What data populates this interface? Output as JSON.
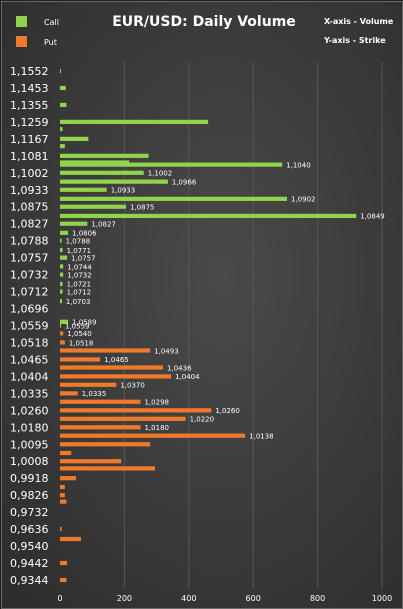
{
  "chart_data": {
    "type": "bar",
    "orientation": "horizontal",
    "title": "EUR/USD: Daily Volume",
    "axis_notes": [
      "X-axis - Volume",
      "Y-axis - Strike"
    ],
    "legend": {
      "placement": "top-left",
      "entries": [
        {
          "name": "Call",
          "color": "#8fd44a"
        },
        {
          "name": "Put",
          "color": "#f07a2a"
        }
      ]
    },
    "xlim": [
      0,
      1000
    ],
    "xticks": [
      "0",
      "200",
      "400",
      "600",
      "800",
      "1000"
    ],
    "grid": true,
    "ytick_labels": [
      "1,1552",
      "1,1453",
      "1,1355",
      "1,1259",
      "1,1167",
      "1,1081",
      "1,1002",
      "1,0933",
      "1,0875",
      "1,0827",
      "1,0788",
      "1,0757",
      "1,0732",
      "1,0712",
      "1,0696",
      "1,0559",
      "1,0518",
      "1,0465",
      "1,0404",
      "1,0335",
      "1,0260",
      "1,0180",
      "1,0095",
      "1,0008",
      "0,9918",
      "0,9826",
      "0,9732",
      "0,9636",
      "0,9540",
      "0,9442",
      "0,9344"
    ],
    "series": [
      {
        "name": "Call",
        "color": "#8fd44a",
        "bars": [
          {
            "strike": 1.1552,
            "value": 3
          },
          {
            "strike": 1.1453,
            "value": 18
          },
          {
            "strike": 1.1355,
            "value": 20
          },
          {
            "strike": 1.1259,
            "value": 460
          },
          {
            "strike": 1.122,
            "value": 8
          },
          {
            "strike": 1.1167,
            "value": 88
          },
          {
            "strike": 1.113,
            "value": 15
          },
          {
            "strike": 1.1081,
            "value": 275
          },
          {
            "strike": 1.105,
            "value": 215
          },
          {
            "strike": 1.104,
            "value": 690,
            "label": "1,1040"
          },
          {
            "strike": 1.1002,
            "value": 260,
            "label": "1,1002"
          },
          {
            "strike": 1.0966,
            "value": 335,
            "label": "1,0966"
          },
          {
            "strike": 1.0933,
            "value": 145,
            "label": "1,0933"
          },
          {
            "strike": 1.0902,
            "value": 705,
            "label": "1,0902"
          },
          {
            "strike": 1.0875,
            "value": 205,
            "label": "1,0875"
          },
          {
            "strike": 1.0849,
            "value": 920,
            "label": "1,0849"
          },
          {
            "strike": 1.0827,
            "value": 85,
            "label": "1,0827"
          },
          {
            "strike": 1.0806,
            "value": 25,
            "label": "1,0806"
          },
          {
            "strike": 1.0788,
            "value": 5,
            "label": "1,0788"
          },
          {
            "strike": 1.0771,
            "value": 8,
            "label": "1,0771"
          },
          {
            "strike": 1.0757,
            "value": 22,
            "label": "1,0757"
          },
          {
            "strike": 1.0744,
            "value": 10,
            "label": "1,0744"
          },
          {
            "strike": 1.0732,
            "value": 10,
            "label": "1,0732"
          },
          {
            "strike": 1.0721,
            "value": 8,
            "label": "1,0721"
          },
          {
            "strike": 1.0712,
            "value": 8,
            "label": "1,0712"
          },
          {
            "strike": 1.0703,
            "value": 6,
            "label": "1,0703"
          },
          {
            "strike": 1.0589,
            "value": 25,
            "label": "1,0589"
          },
          {
            "strike": 1.0559,
            "value": 3,
            "label": "1,0559"
          }
        ]
      },
      {
        "name": "Put",
        "color": "#f07a2a",
        "bars": [
          {
            "strike": 1.054,
            "value": 10,
            "label": "1,0540"
          },
          {
            "strike": 1.0518,
            "value": 15,
            "label": "1,0518"
          },
          {
            "strike": 1.0493,
            "value": 280,
            "label": "1,0493"
          },
          {
            "strike": 1.0465,
            "value": 125,
            "label": "1,0465"
          },
          {
            "strike": 1.0436,
            "value": 320,
            "label": "1,0436"
          },
          {
            "strike": 1.0404,
            "value": 345,
            "label": "1,0404"
          },
          {
            "strike": 1.037,
            "value": 175,
            "label": "1,0370"
          },
          {
            "strike": 1.0335,
            "value": 55,
            "label": "1,0335"
          },
          {
            "strike": 1.0298,
            "value": 250,
            "label": "1,0298"
          },
          {
            "strike": 1.026,
            "value": 470,
            "label": "1,0260"
          },
          {
            "strike": 1.022,
            "value": 390,
            "label": "1,0220"
          },
          {
            "strike": 1.018,
            "value": 250,
            "label": "1,0180"
          },
          {
            "strike": 1.0138,
            "value": 575,
            "label": "1,0138"
          },
          {
            "strike": 1.0095,
            "value": 280
          },
          {
            "strike": 1.005,
            "value": 35
          },
          {
            "strike": 1.0008,
            "value": 190
          },
          {
            "strike": 0.997,
            "value": 295
          },
          {
            "strike": 0.9918,
            "value": 50
          },
          {
            "strike": 0.987,
            "value": 15
          },
          {
            "strike": 0.9826,
            "value": 15
          },
          {
            "strike": 0.979,
            "value": 20
          },
          {
            "strike": 0.9636,
            "value": 5
          },
          {
            "strike": 0.958,
            "value": 65
          },
          {
            "strike": 0.9442,
            "value": 22
          },
          {
            "strike": 0.9344,
            "value": 20
          }
        ]
      }
    ]
  }
}
